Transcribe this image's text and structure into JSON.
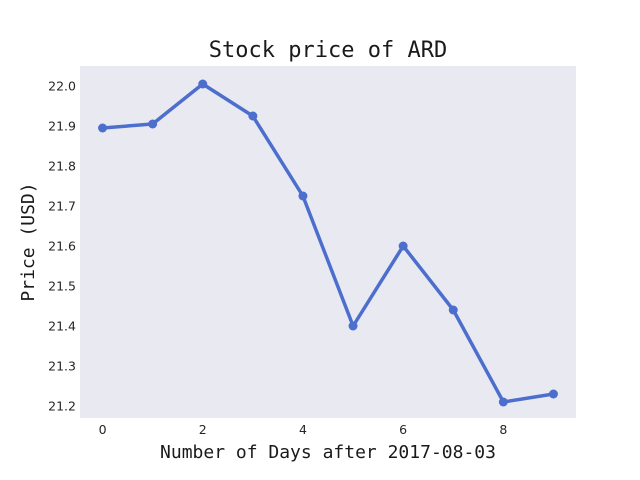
{
  "chart_data": {
    "type": "line",
    "title": "Stock price of ARD",
    "xlabel": "Number of Days after 2017-08-03",
    "ylabel": "Price (USD)",
    "x": [
      0,
      1,
      2,
      3,
      4,
      5,
      6,
      7,
      8,
      9
    ],
    "series": [
      {
        "values": [
          21.895,
          21.905,
          22.005,
          21.925,
          21.725,
          21.4,
          21.6,
          21.44,
          21.21,
          21.23
        ]
      }
    ],
    "xlim": [
      -0.45,
      9.45
    ],
    "ylim": [
      21.17,
      22.05
    ],
    "xticks": [
      0,
      2,
      4,
      6,
      8
    ],
    "yticks": [
      21.2,
      21.3,
      21.4,
      21.5,
      21.6,
      21.7,
      21.8,
      21.9,
      22.0
    ],
    "xtick_labels": [
      "0",
      "2",
      "4",
      "6",
      "8"
    ],
    "ytick_labels": [
      "21.2",
      "21.3",
      "21.4",
      "21.5",
      "21.6",
      "21.7",
      "21.8",
      "21.9",
      "22.0"
    ],
    "grid": false,
    "colors": {
      "line": "#4c6fce",
      "plot_background": "#e9e9f2"
    }
  }
}
